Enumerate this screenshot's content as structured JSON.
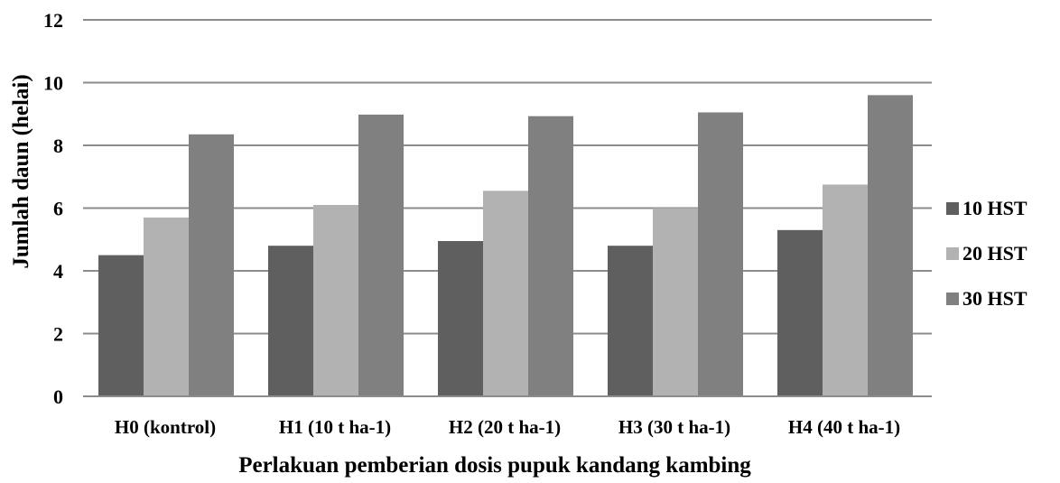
{
  "chart_data": {
    "type": "bar",
    "title": "",
    "xlabel": "Perlakuan pemberian dosis pupuk kandang kambing",
    "ylabel": "Jumlah daun (helai)",
    "ylim": [
      0,
      12
    ],
    "yticks": [
      0,
      2,
      4,
      6,
      8,
      10,
      12
    ],
    "grid": true,
    "legend_position": "right",
    "categories": [
      "H0 (kontrol)",
      "H1 (10 t ha-1)",
      "H2 (20 t ha-1)",
      "H3 (30 t ha-1)",
      "H4 (40 t ha-1)"
    ],
    "series": [
      {
        "name": "10 HST",
        "color": "#5f5f5f",
        "values": [
          4.5,
          4.8,
          4.95,
          4.8,
          5.3
        ]
      },
      {
        "name": "20 HST",
        "color": "#b2b2b2",
        "values": [
          5.7,
          6.1,
          6.55,
          6.0,
          6.75
        ]
      },
      {
        "name": "30 HST",
        "color": "#808080",
        "values": [
          8.35,
          8.98,
          8.93,
          9.05,
          9.6
        ]
      }
    ]
  }
}
